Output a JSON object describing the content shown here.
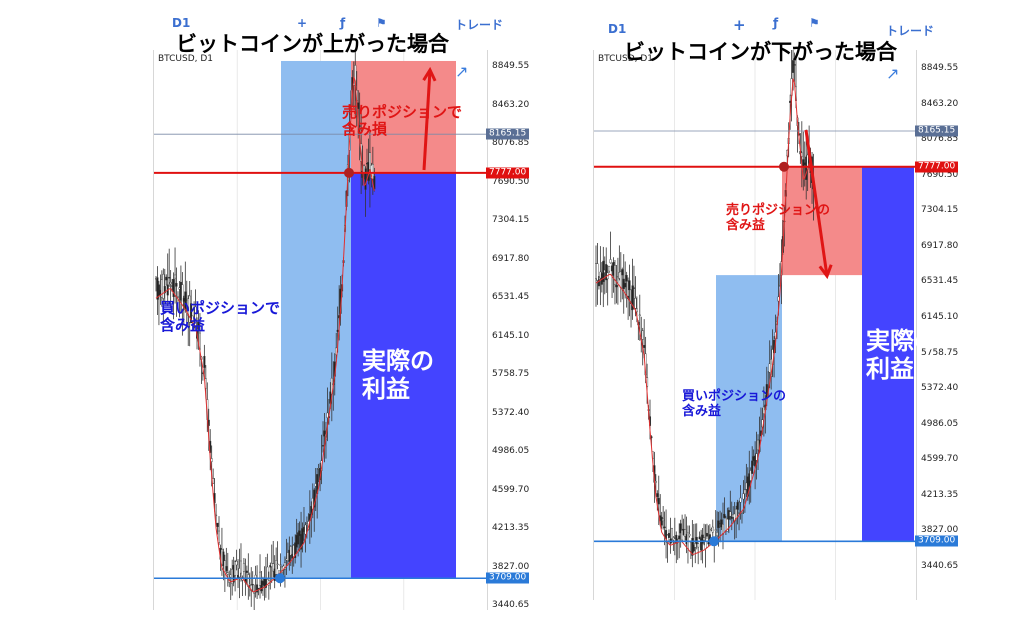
{
  "left": {
    "title": "ビットコインが上がった場合",
    "symbol": "BTCUSD, D1",
    "toolbar": [
      "D1",
      "+",
      "ƒ",
      "⚑",
      "トレード"
    ],
    "price_ticks": [
      "8849.55",
      "8463.20",
      "8076.85",
      "7690.50",
      "7304.15",
      "6917.80",
      "6531.45",
      "6145.10",
      "5758.75",
      "5372.40",
      "4986.05",
      "4599.70",
      "4213.35",
      "3827.00",
      "3440.65"
    ],
    "tags": {
      "current": "8165.15",
      "sell": "7777.00",
      "buy": "3709.00"
    },
    "sell_label": [
      "売りポジションで",
      "含み損"
    ],
    "buy_label": [
      "買いポジションで",
      "含み益"
    ],
    "profit_label": [
      "実際の",
      "利益"
    ]
  },
  "right": {
    "title": "ビットコインが下がった場合",
    "symbol": "BTCUSD, D1",
    "toolbar": [
      "D1",
      "+",
      "ƒ",
      "⚑",
      "トレード"
    ],
    "price_ticks": [
      "8849.55",
      "8463.20",
      "8076.85",
      "7690.50",
      "7304.15",
      "6917.80",
      "6531.45",
      "6145.10",
      "5758.75",
      "5372.40",
      "4986.05",
      "4599.70",
      "4213.35",
      "3827.00",
      "3440.65"
    ],
    "tags": {
      "current": "8165.15",
      "sell": "7777.00",
      "buy": "3709.00"
    },
    "sell_label": [
      "売りポジションの",
      "含み益"
    ],
    "buy_label": [
      "買いポジションの",
      "含み益"
    ],
    "profit_label": [
      "実際の",
      "利益"
    ]
  },
  "colors": {
    "sell_zone": "#f48a8a",
    "buy_zone": "#8fbdf0",
    "profit_zone": "#4444ff",
    "sell_line": "#e01010",
    "buy_line": "#2a7ad8",
    "red_text": "#e01515",
    "blue_text": "#1818d8"
  }
}
